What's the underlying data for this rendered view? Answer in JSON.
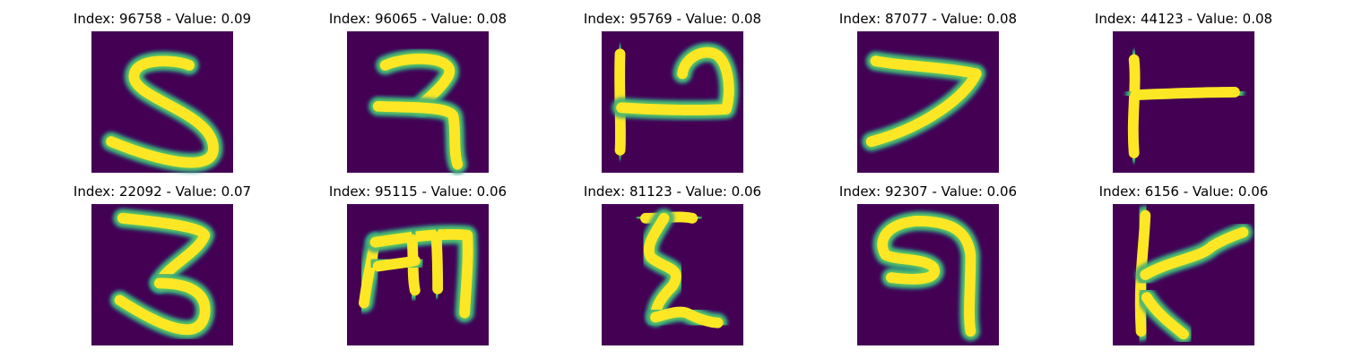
{
  "figure": {
    "background": "#ffffff",
    "image_background": "#440154",
    "colormap": "viridis",
    "panels": [
      {
        "title": "Index: 96758 - Value: 0.09",
        "glyph": "s-shape"
      },
      {
        "title": "Index: 96065 - Value: 0.08",
        "glyph": "ra-shape"
      },
      {
        "title": "Index: 95769 - Value: 0.08",
        "glyph": "p-shape"
      },
      {
        "title": "Index: 87077 - Value: 0.08",
        "glyph": "seven-shape"
      },
      {
        "title": "Index: 44123 - Value: 0.08",
        "glyph": "tee-shape"
      },
      {
        "title": "Index: 22092 - Value: 0.07",
        "glyph": "three-shape"
      },
      {
        "title": "Index: 95115 - Value: 0.06",
        "glyph": "m-shape"
      },
      {
        "title": "Index: 81123 - Value: 0.06",
        "glyph": "zigzag-shape"
      },
      {
        "title": "Index: 92307 - Value: 0.06",
        "glyph": "loop-shape"
      },
      {
        "title": "Index: 6156 - Value: 0.06",
        "glyph": "k-shape"
      }
    ]
  }
}
